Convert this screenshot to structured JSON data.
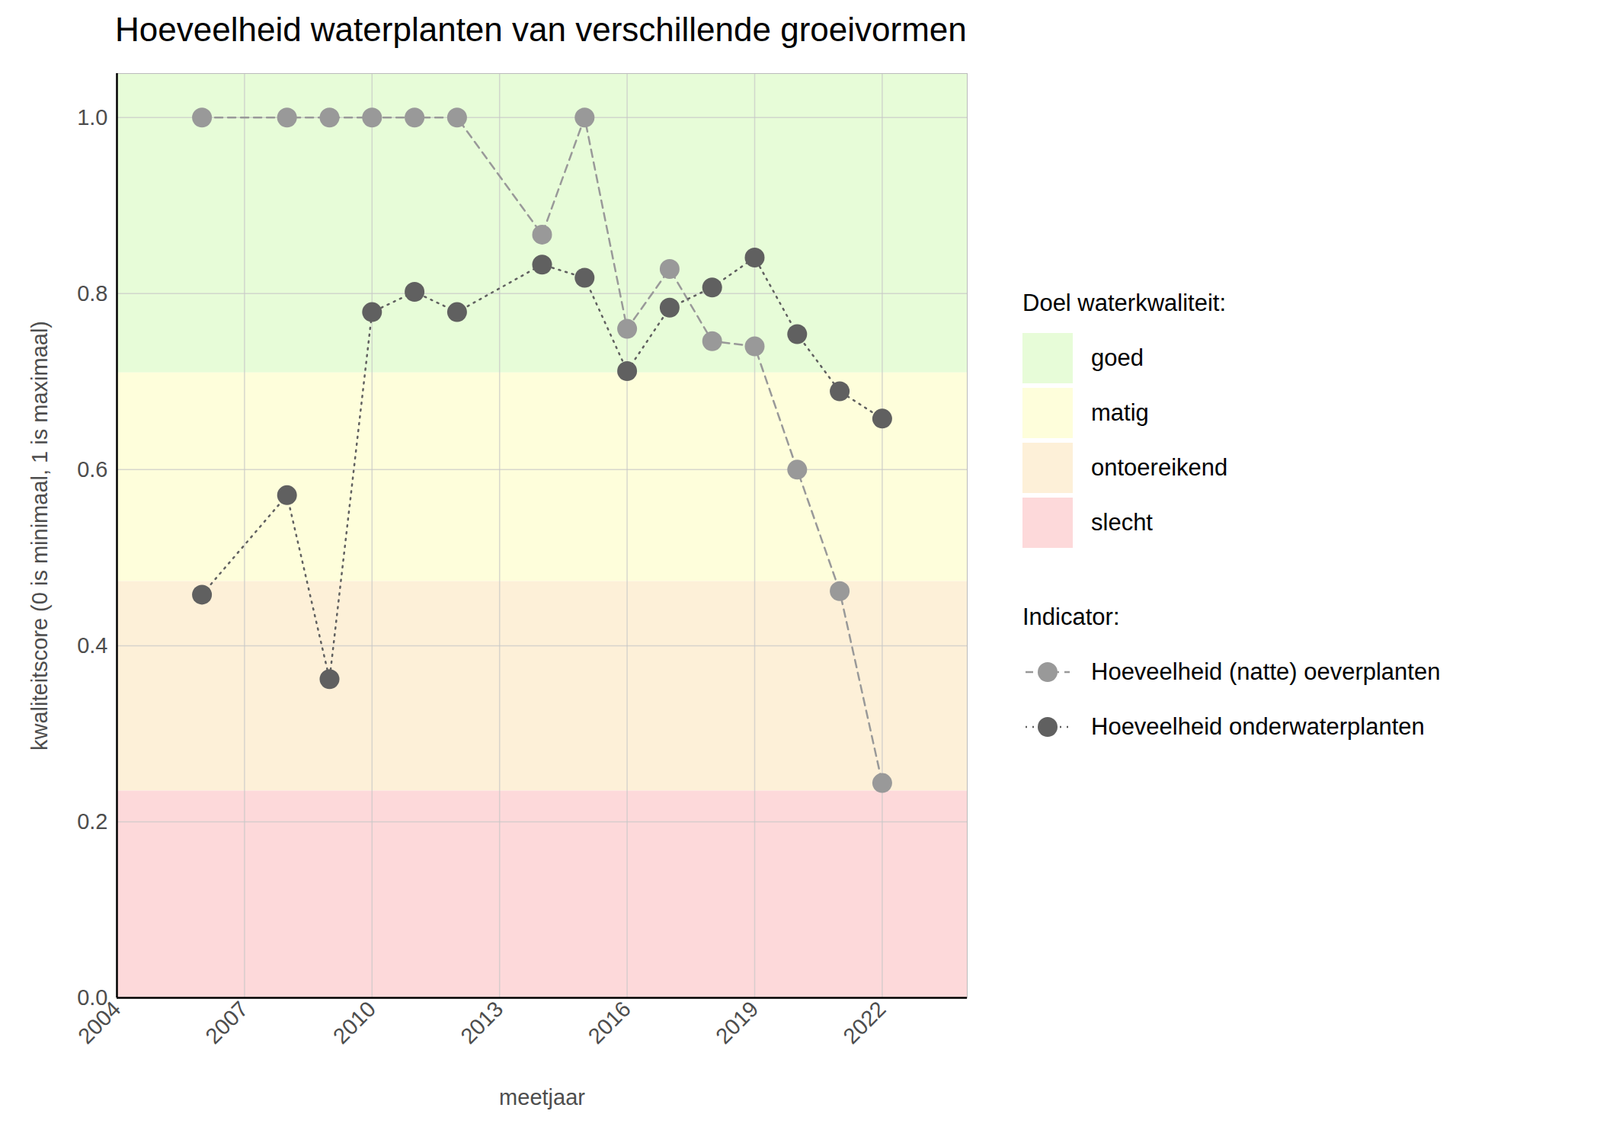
{
  "chart_data": {
    "type": "line",
    "title": "Hoeveelheid waterplanten van verschillende groeivormen",
    "x_label": "meetjaar",
    "y_label": "kwaliteitscore (0 is minimaal, 1 is maximaal)",
    "x": [
      2006,
      2008,
      2009,
      2010,
      2011,
      2012,
      2014,
      2015,
      2016,
      2017,
      2018,
      2019,
      2020,
      2021,
      2022
    ],
    "series": [
      {
        "name": "Hoeveelheid (natte) oeverplanten",
        "color": "#999999",
        "line_style": "dashed",
        "marker": "circle",
        "values": [
          1.0,
          1.0,
          1.0,
          1.0,
          1.0,
          1.0,
          0.867,
          1.0,
          0.76,
          0.828,
          0.746,
          0.74,
          0.6,
          0.462,
          0.244
        ]
      },
      {
        "name": "Hoeveelheid onderwaterplanten",
        "color": "#606060",
        "line_style": "dotted",
        "marker": "circle",
        "values": [
          0.458,
          0.571,
          0.362,
          0.779,
          0.802,
          0.779,
          0.833,
          0.818,
          0.712,
          0.784,
          0.807,
          0.841,
          0.754,
          0.689,
          0.658
        ]
      }
    ],
    "bands_title": "Doel waterkwaliteit:",
    "bands": [
      {
        "name": "goed",
        "color": "#e7fcd8",
        "from": 0.71,
        "to": 1.05
      },
      {
        "name": "matig",
        "color": "#fefedb",
        "from": 0.473,
        "to": 0.71
      },
      {
        "name": "ontoereikend",
        "color": "#fdf0d8",
        "from": 0.235,
        "to": 0.473
      },
      {
        "name": "slecht",
        "color": "#fdd9da",
        "from": 0,
        "to": 0.235
      }
    ],
    "series_legend_title": "Indicator:",
    "xlim": [
      2004,
      2024
    ],
    "xticks": [
      2004,
      2007,
      2010,
      2013,
      2016,
      2019,
      2022
    ],
    "ylim": [
      0,
      1.05
    ],
    "yticks": [
      {
        "value": 0,
        "label": "0.0"
      },
      0.2,
      0.4,
      0.6,
      0.8,
      {
        "value": 1,
        "label": "1.0"
      }
    ],
    "grid": true,
    "legend": "right"
  }
}
